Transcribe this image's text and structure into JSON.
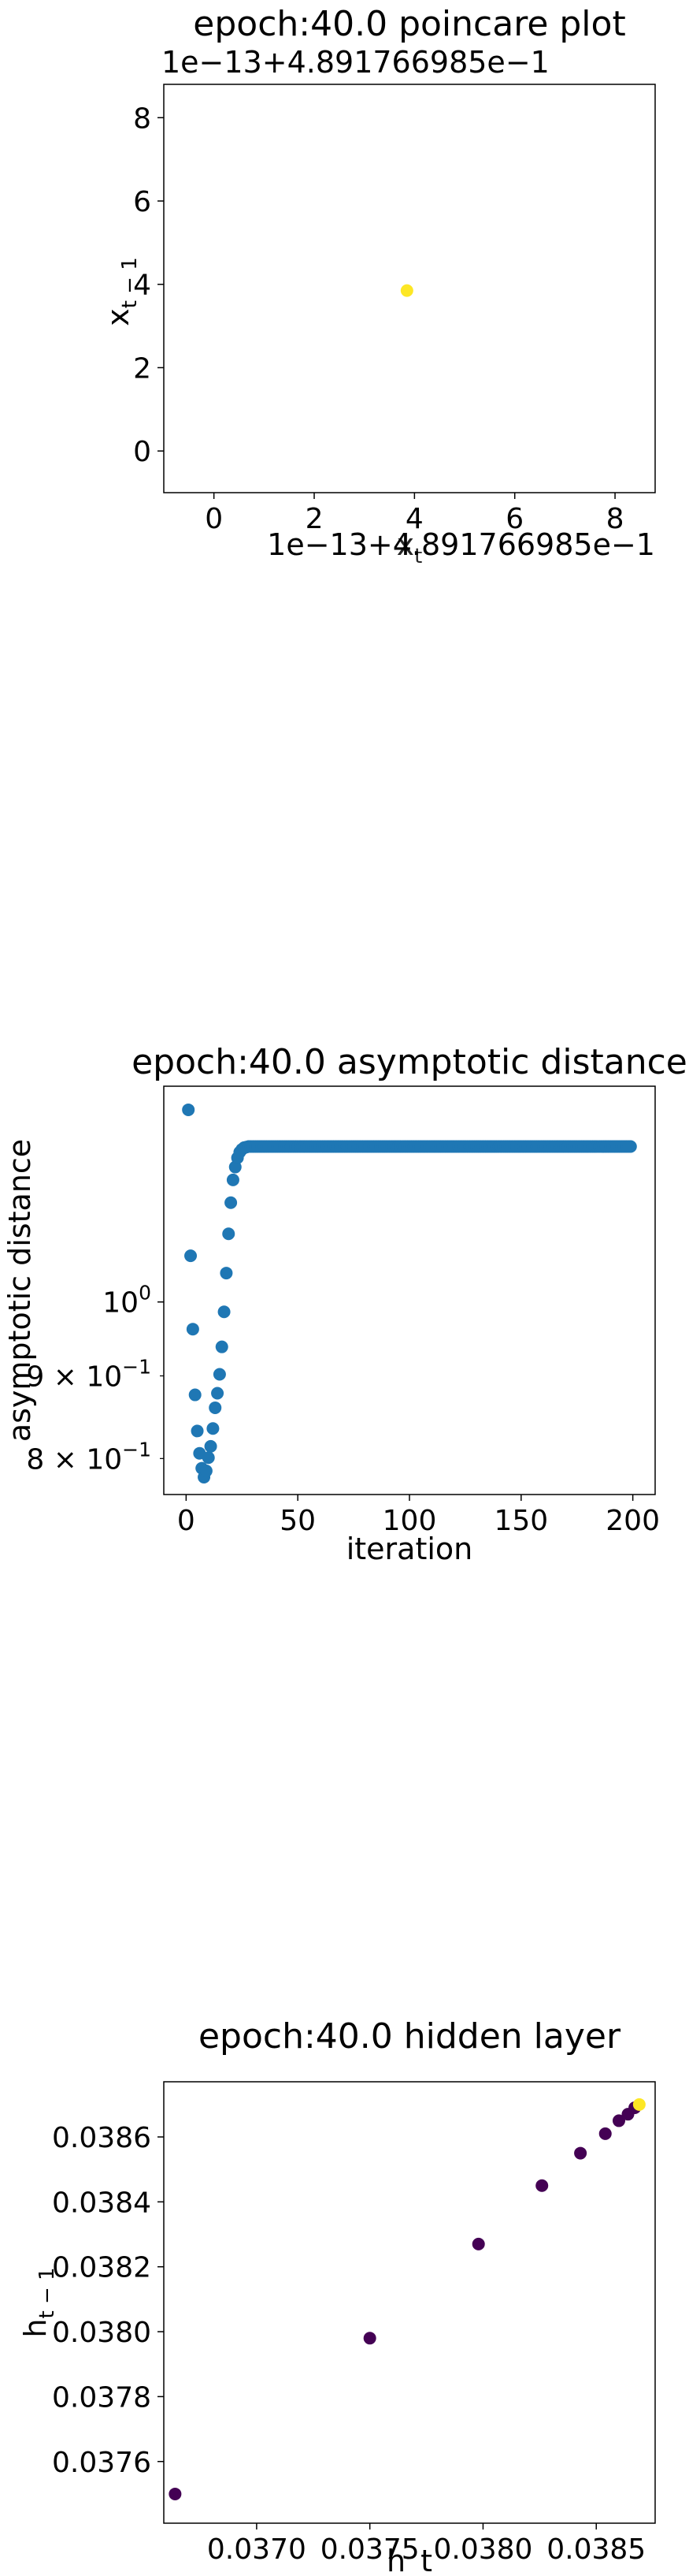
{
  "chart_data": [
    {
      "type": "scatter",
      "title": "epoch:40.0 poincare plot",
      "xlabel": "x_t",
      "ylabel": "x_{t-1}",
      "x_offset_label": "1e−13+4.891766985e−1",
      "y_offset_label": "1e−13+4.891766985e−1",
      "xlim": [
        -1,
        8.8
      ],
      "ylim": [
        -1,
        8.8
      ],
      "x_ticks": [
        0,
        2,
        4,
        6,
        8
      ],
      "y_ticks": [
        0,
        2,
        4,
        6,
        8
      ],
      "tick_labels": [
        "0",
        "2",
        "4",
        "6",
        "8"
      ],
      "points": [
        {
          "x": 3.85,
          "y": 3.85,
          "color": "#fde725"
        }
      ],
      "grid": false
    },
    {
      "type": "scatter",
      "title": "epoch:40.0 asymptotic distance",
      "xlabel": "iteration",
      "ylabel": "asymptotic distance",
      "yscale": "log",
      "xlim": [
        -10,
        210
      ],
      "ylim": [
        0.76,
        1.36
      ],
      "x_ticks": [
        0,
        50,
        100,
        150,
        200
      ],
      "x_tick_labels": [
        "0",
        "50",
        "100",
        "150",
        "200"
      ],
      "y_major_ticks": [
        1.0
      ],
      "y_major_tick_labels": [
        {
          "base": "10",
          "exp": "0"
        }
      ],
      "y_minor_ticks": [
        0.9,
        0.8
      ],
      "y_minor_tick_labels": [
        {
          "coef": "9",
          "times": "×",
          "base": "10",
          "exp": "−1"
        },
        {
          "coef": "8",
          "times": "×",
          "base": "10",
          "exp": "−1"
        }
      ],
      "color": "#1f77b4",
      "x": [
        1,
        2,
        3,
        4,
        5,
        6,
        7,
        8,
        9,
        10,
        11,
        12,
        13,
        14,
        15,
        16,
        17,
        18,
        19,
        20,
        21,
        22,
        23,
        24,
        25,
        26,
        27,
        28,
        29,
        30
      ],
      "y": [
        1.315,
        1.068,
        0.962,
        0.876,
        0.832,
        0.806,
        0.789,
        0.779,
        0.786,
        0.801,
        0.814,
        0.835,
        0.86,
        0.878,
        0.902,
        0.938,
        0.986,
        1.042,
        1.102,
        1.152,
        1.19,
        1.212,
        1.228,
        1.238,
        1.243,
        1.246,
        1.247,
        1.248,
        1.248,
        1.248
      ],
      "plateau": {
        "x_start": 31,
        "x_end": 199,
        "y": 1.248
      },
      "grid": false
    },
    {
      "type": "scatter",
      "title": "epoch:40.0 hidden layer",
      "xlabel": "h_t",
      "ylabel": "h_{t-1}",
      "xlim": [
        0.03659,
        0.03876
      ],
      "ylim": [
        0.03741,
        0.03877
      ],
      "x_ticks": [
        0.037,
        0.0375,
        0.038,
        0.0385
      ],
      "x_tick_labels": [
        "0.0370",
        "0.0375",
        "0.0380",
        "0.0385"
      ],
      "y_ticks": [
        0.0376,
        0.0378,
        0.038,
        0.0382,
        0.0384,
        0.0386
      ],
      "y_tick_labels": [
        "0.0376",
        "0.0378",
        "0.0380",
        "0.0382",
        "0.0384",
        "0.0386"
      ],
      "points": [
        {
          "x": 0.03664,
          "y": 0.0375,
          "color": "#440154"
        },
        {
          "x": 0.0375,
          "y": 0.03798,
          "color": "#440154"
        },
        {
          "x": 0.03798,
          "y": 0.03827,
          "color": "#440154"
        },
        {
          "x": 0.03826,
          "y": 0.03845,
          "color": "#440154"
        },
        {
          "x": 0.03843,
          "y": 0.03855,
          "color": "#440154"
        },
        {
          "x": 0.03854,
          "y": 0.03861,
          "color": "#440154"
        },
        {
          "x": 0.0386,
          "y": 0.03865,
          "color": "#440154"
        },
        {
          "x": 0.03864,
          "y": 0.03867,
          "color": "#440154"
        },
        {
          "x": 0.03867,
          "y": 0.03869,
          "color": "#440154"
        },
        {
          "x": 0.03869,
          "y": 0.0387,
          "color": "#fde725"
        }
      ],
      "grid": false
    }
  ]
}
